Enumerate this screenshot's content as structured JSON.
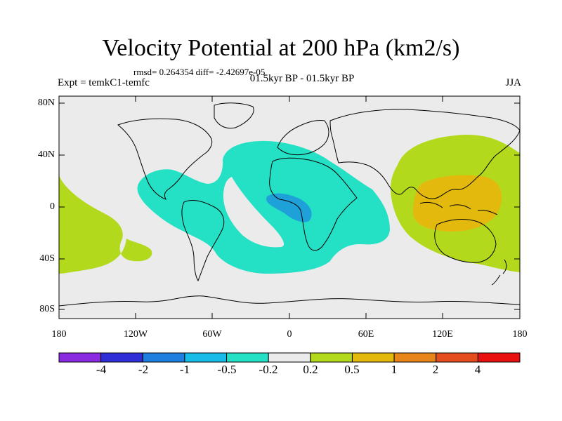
{
  "title": "Velocity Potential at 200 hPa (km2/s)",
  "stats": "rmsd= 0.264354 diff= -2.42697e-05",
  "experiment": "Expt = temkC1-temfc",
  "period": "01.5kyr BP - 01.5kyr BP",
  "season": "JJA",
  "axes": {
    "y_ticks": [
      "80N",
      "40N",
      "0",
      "40S",
      "80S"
    ],
    "x_ticks": [
      "180",
      "120W",
      "60W",
      "0",
      "60E",
      "120E",
      "180"
    ]
  },
  "colorbar": {
    "colors": [
      "#8a2be2",
      "#2f2fd8",
      "#1e7fe0",
      "#17bde8",
      "#24e0c4",
      "#ebebeb",
      "#b3d91c",
      "#e4b90e",
      "#e8851a",
      "#e64d1c",
      "#e8110f"
    ],
    "labels": [
      "-4",
      "-2",
      "-1",
      "-0.5",
      "-0.2",
      "0.2",
      "0.5",
      "1",
      "2",
      "4"
    ]
  },
  "map": {
    "background": "#ebebeb",
    "positive_fill": "#b3d91c",
    "positive_strong_fill": "#e4b90e",
    "negative_fill": "#24e0c4",
    "negative_strong_fill": "#1ea0d8"
  }
}
